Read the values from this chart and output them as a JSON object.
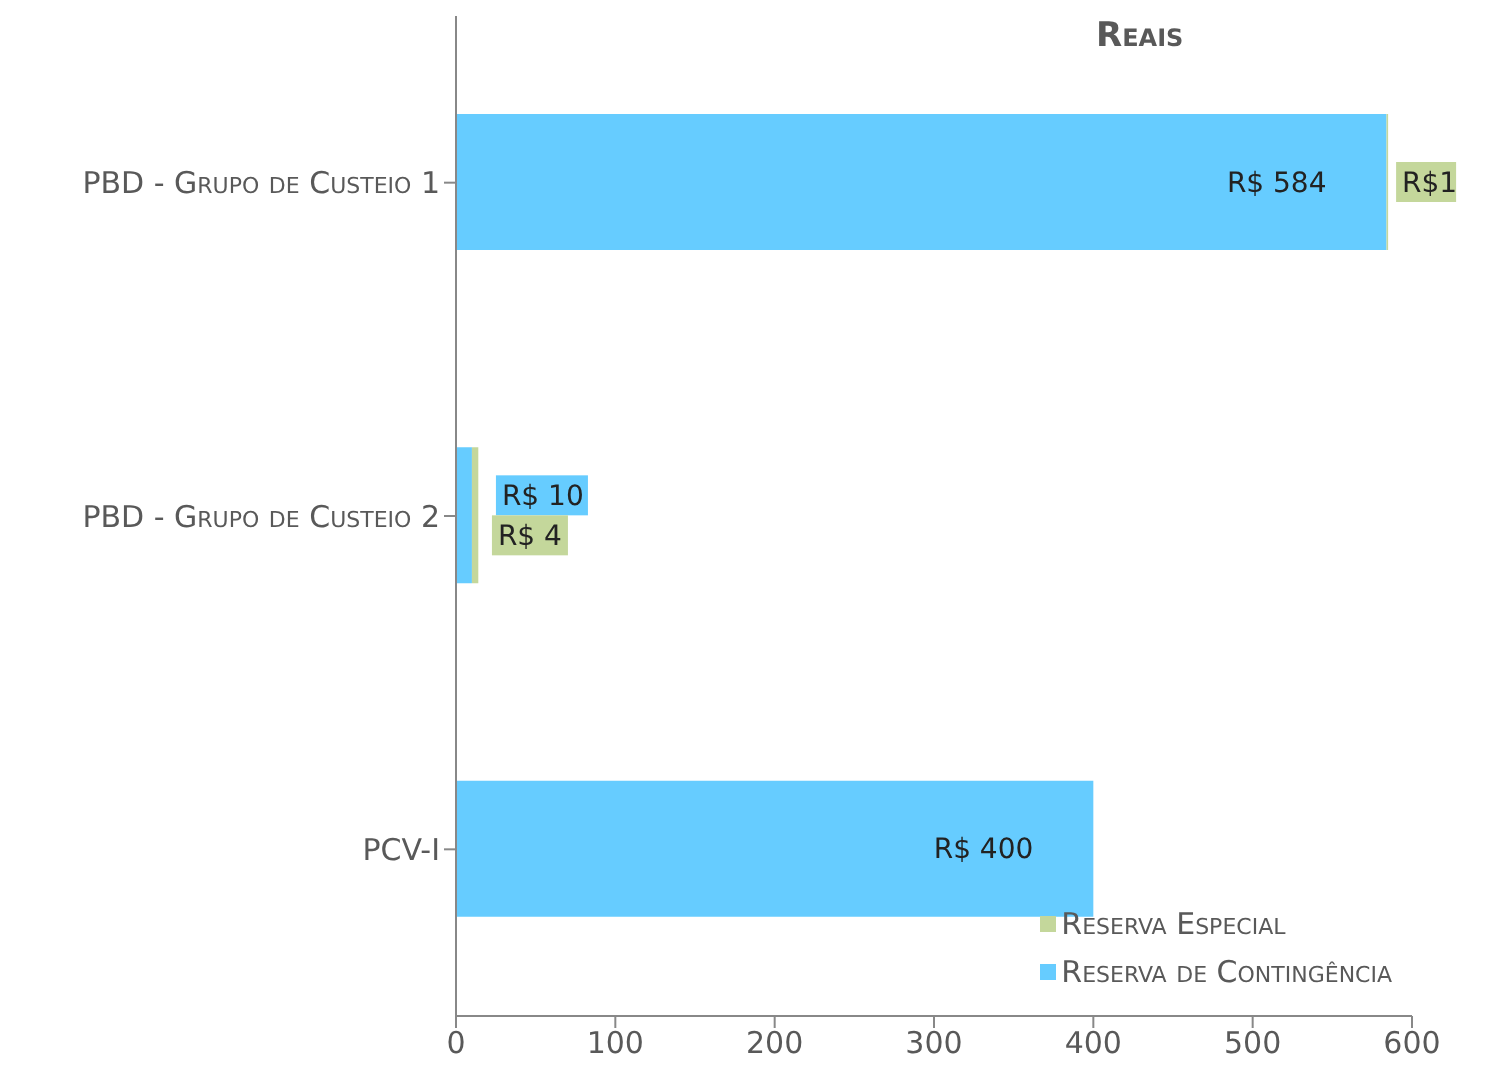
{
  "chart_data": {
    "type": "bar",
    "title": "Reais",
    "orientation": "horizontal",
    "stacked": true,
    "categories": [
      "PBD - Grupo de Custeio 1",
      "PBD - Grupo de Custeio 2",
      "PCV-I"
    ],
    "series": [
      {
        "name": "Reserva de Contingência",
        "color": "#66ccff",
        "values": [
          584,
          10,
          400
        ],
        "value_labels": [
          "R$ 584",
          "R$ 10",
          "R$ 400"
        ]
      },
      {
        "name": "Reserva Especial",
        "color": "#c4d79b",
        "values": [
          1,
          4,
          null
        ],
        "value_labels": [
          "R$1",
          "R$ 4",
          null
        ]
      }
    ],
    "xlim": [
      0,
      600
    ],
    "xticks": [
      0,
      100,
      200,
      300,
      400,
      500,
      600
    ],
    "grid": false,
    "legend": "bottom right"
  }
}
